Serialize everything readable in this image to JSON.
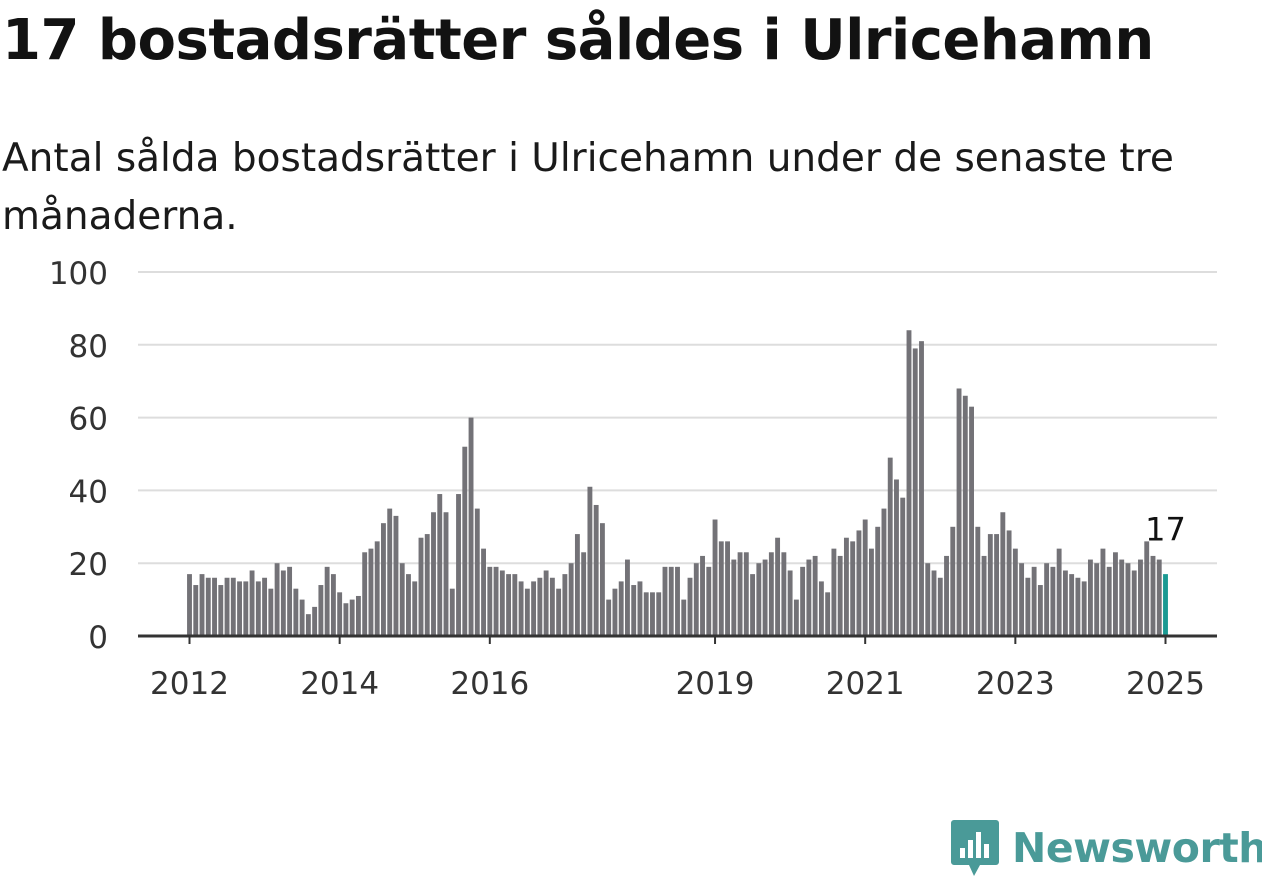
{
  "title": "17 bostadsrätter såldes i Ulricehamn",
  "subtitle": "Antal sålda bostadsrätter i Ulricehamn under de senaste tre månaderna.",
  "brand": {
    "name": "Newsworthy",
    "color": "#4a9a98",
    "icon": "newsworthy-logo-icon"
  },
  "colors": {
    "bar": "#737277",
    "highlight": "#1b9a93",
    "grid": "#dddddd",
    "axis": "#333333"
  },
  "chart_data": {
    "type": "bar",
    "ylim": [
      0,
      100
    ],
    "yticks": [
      0,
      20,
      40,
      60,
      80,
      100
    ],
    "grid": true,
    "xtick_labels": [
      "2012",
      "2014",
      "2016",
      "2019",
      "2021",
      "2023",
      "2025"
    ],
    "x_start": "2012-01",
    "x_end": "2025-01",
    "values": [
      17,
      14,
      17,
      16,
      16,
      14,
      16,
      16,
      15,
      15,
      18,
      15,
      16,
      13,
      20,
      18,
      19,
      13,
      10,
      6,
      8,
      14,
      19,
      17,
      12,
      9,
      10,
      11,
      23,
      24,
      26,
      31,
      35,
      33,
      20,
      17,
      15,
      27,
      28,
      34,
      39,
      34,
      13,
      39,
      52,
      60,
      35,
      24,
      19,
      19,
      18,
      17,
      17,
      15,
      13,
      15,
      16,
      18,
      16,
      13,
      17,
      20,
      28,
      23,
      41,
      36,
      31,
      10,
      13,
      15,
      21,
      14,
      15,
      12,
      12,
      12,
      19,
      19,
      19,
      10,
      16,
      20,
      22,
      19,
      32,
      26,
      26,
      21,
      23,
      23,
      17,
      20,
      21,
      23,
      27,
      23,
      18,
      10,
      19,
      21,
      22,
      15,
      12,
      24,
      22,
      27,
      26,
      29,
      32,
      24,
      30,
      35,
      49,
      43,
      38,
      84,
      79,
      81,
      20,
      18,
      16,
      22,
      30,
      68,
      66,
      63,
      30,
      22,
      28,
      28,
      34,
      29,
      24,
      20,
      16,
      19,
      14,
      20,
      19,
      24,
      18,
      17,
      16,
      15,
      21,
      20,
      24,
      19,
      23,
      21,
      20,
      18,
      21,
      26,
      22,
      21,
      17
    ],
    "highlight_last": true,
    "last_value_label": "17"
  }
}
